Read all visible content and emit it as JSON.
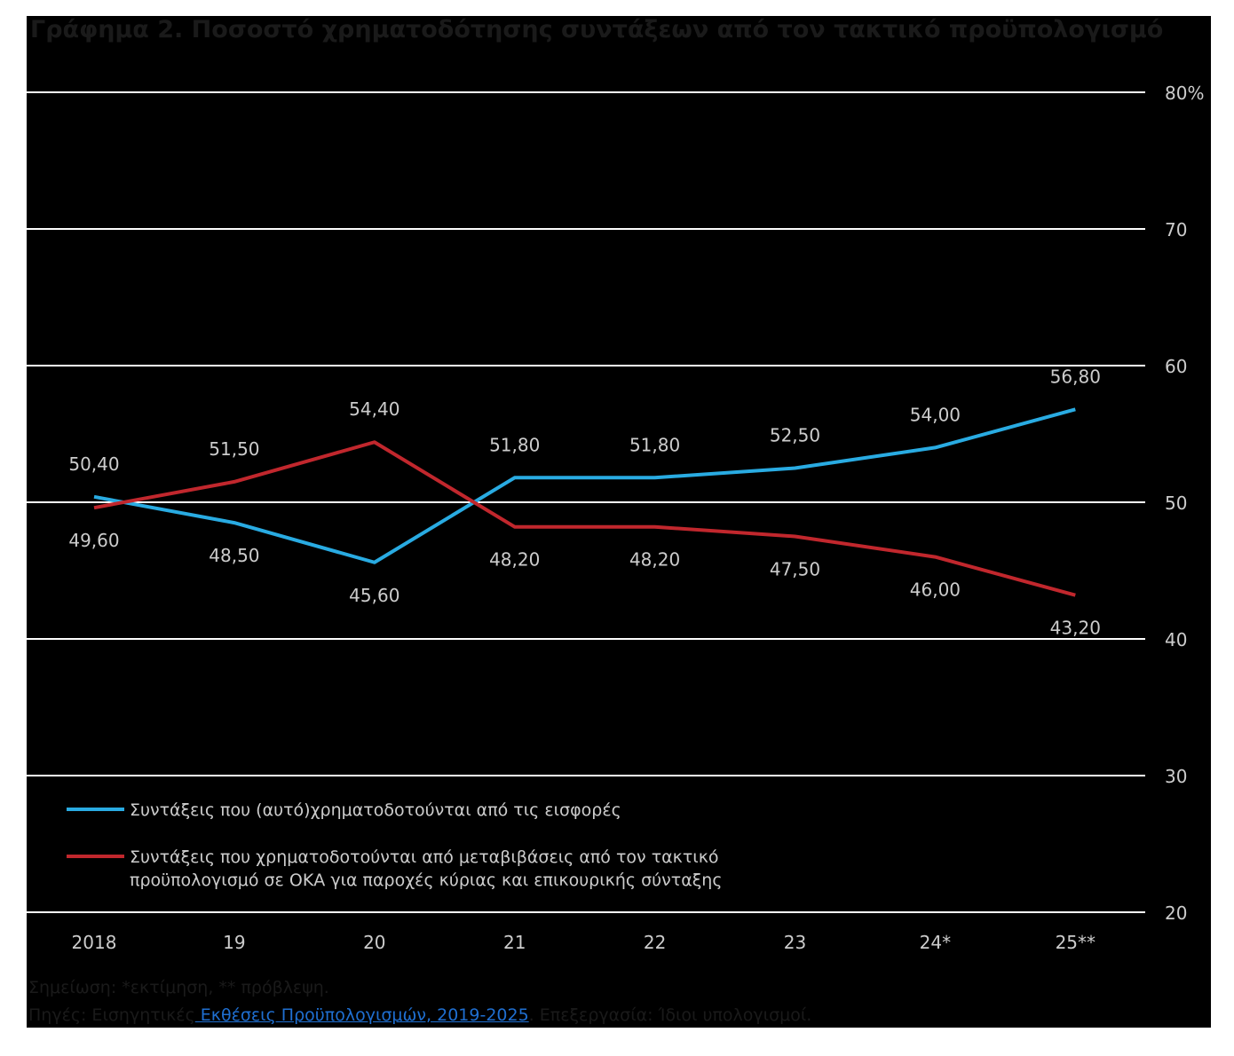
{
  "title": "Γράφημα 2. Ποσοστό χρηματοδότησης συντάξεων από τον τακτικό προϋπολογισμό",
  "colors": {
    "background": "#000000",
    "grid": "#ffffff",
    "text": "#cccccc",
    "series_blue": "#29abe2",
    "series_red": "#c1272d",
    "link": "#1f6fd1"
  },
  "chart_data": {
    "type": "line",
    "categories": [
      "2018",
      "19",
      "20",
      "21",
      "22",
      "23",
      "24*",
      "25**"
    ],
    "series": [
      {
        "name": "Συντάξεις που (αυτό)χρηματοδοτούνται από τις εισφορές",
        "color": "#29abe2",
        "values": [
          50.4,
          48.5,
          45.6,
          51.8,
          51.8,
          52.5,
          54.0,
          56.8
        ],
        "labels": [
          "50,40",
          "48,50",
          "45,60",
          "51,80",
          "51,80",
          "52,50",
          "54,00",
          "56,80"
        ]
      },
      {
        "name": "Συντάξεις που χρηματοδοτούνται από μεταβιβάσεις από τον τακτικό προϋπολογισμό σε ΟΚΑ για παροχές κύριας και επικουρικής σύνταξης",
        "color": "#c1272d",
        "values": [
          49.6,
          51.5,
          54.4,
          48.2,
          48.2,
          47.5,
          46.0,
          43.2
        ],
        "labels": [
          "49,60",
          "51,50",
          "54,40",
          "48,20",
          "48,20",
          "47,50",
          "46,00",
          "43,20"
        ]
      }
    ],
    "ylim": [
      20,
      80
    ],
    "yticks": [
      20,
      30,
      40,
      50,
      60,
      70,
      80
    ],
    "ytick_labels": [
      "20",
      "30",
      "40",
      "50",
      "60",
      "70",
      "80%"
    ],
    "y_axis_side": "right",
    "grid": true,
    "legend_position": "bottom-left",
    "legend": [
      {
        "lines": [
          "Συντάξεις που (αυτό)χρηματοδοτούνται από τις εισφορές"
        ],
        "color": "#29abe2"
      },
      {
        "lines": [
          "Συντάξεις που χρηματοδοτούνται από μεταβιβάσεις από τον τακτικό",
          "προϋπολογισμό σε ΟΚΑ για παροχές κύριας και επικουρικής σύνταξης"
        ],
        "color": "#c1272d"
      }
    ]
  },
  "notes": {
    "note": "Σημείωση: *εκτίμηση, ** πρόβλεψη.",
    "source_prefix": "Πηγές: Εισηγητικές",
    "source_link": " Εκθέσεις Προϋπολογισμών, 2019-2025",
    "source_suffix": ". Επεξεργασία: Ίδιοι υπολογισμοί."
  }
}
